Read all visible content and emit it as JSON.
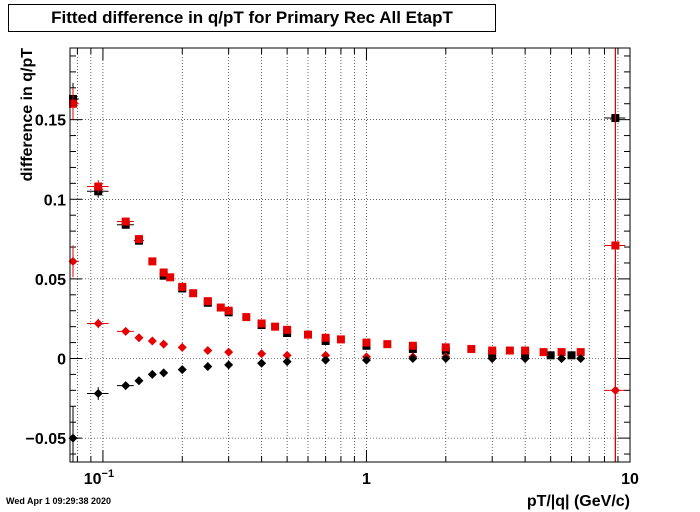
{
  "chart_data": {
    "type": "scatter",
    "title": "Fitted difference in q/pT for Primary Rec All EtapT",
    "xlabel": "pT/|q| (GeV/c)",
    "ylabel": "difference in q/pT",
    "xscale": "log",
    "xlim": [
      0.075,
      10
    ],
    "ylim": [
      -0.065,
      0.195
    ],
    "grid": true,
    "xticks": [
      {
        "v": 0.1,
        "base": "10",
        "exp": "−1"
      },
      {
        "v": 1,
        "text": "1"
      },
      {
        "v": 10,
        "text": "10"
      }
    ],
    "yticks": [
      {
        "v": -0.05,
        "text": "−0.05"
      },
      {
        "v": 0,
        "text": "0"
      },
      {
        "v": 0.05,
        "text": "0.05"
      },
      {
        "v": 0.1,
        "text": "0.1"
      },
      {
        "v": 0.15,
        "text": "0.15"
      }
    ],
    "series": [
      {
        "marker": "square",
        "color": "#000000",
        "points": [
          [
            0.077,
            0.163
          ],
          [
            0.096,
            0.105
          ],
          [
            0.122,
            0.084
          ],
          [
            0.137,
            0.074
          ],
          [
            0.17,
            0.052
          ],
          [
            0.2,
            0.044
          ],
          [
            0.25,
            0.035
          ],
          [
            0.3,
            0.029
          ],
          [
            0.4,
            0.021
          ],
          [
            0.5,
            0.016
          ],
          [
            0.7,
            0.011
          ],
          [
            1.0,
            0.008
          ],
          [
            1.5,
            0.006
          ],
          [
            2.0,
            0.005
          ],
          [
            3.0,
            0.003
          ],
          [
            4.0,
            0.003
          ],
          [
            5.0,
            0.002
          ],
          [
            6.0,
            0.002
          ],
          [
            8.8,
            0.151
          ]
        ],
        "xerr": [
          [
            0.074,
            0.081
          ],
          [
            0.087,
            0.105
          ],
          [
            0.113,
            0.131
          ],
          [
            0.131,
            0.143
          ],
          [],
          [],
          [],
          [],
          [],
          [],
          [],
          [],
          [],
          [],
          [],
          [],
          [],
          [],
          [
            8.0,
            9.6
          ]
        ],
        "yerr": [
          0.01,
          0.004,
          0.002,
          0.002,
          0,
          0,
          0,
          0,
          0,
          0,
          0,
          0,
          0,
          0,
          0,
          0,
          0,
          0,
          0.25
        ]
      },
      {
        "marker": "square",
        "color": "#e60000",
        "points": [
          [
            0.077,
            0.16
          ],
          [
            0.096,
            0.108
          ],
          [
            0.122,
            0.086
          ],
          [
            0.137,
            0.075
          ],
          [
            0.154,
            0.061
          ],
          [
            0.17,
            0.054
          ],
          [
            0.18,
            0.051
          ],
          [
            0.2,
            0.045
          ],
          [
            0.22,
            0.041
          ],
          [
            0.25,
            0.036
          ],
          [
            0.28,
            0.032
          ],
          [
            0.3,
            0.03
          ],
          [
            0.35,
            0.026
          ],
          [
            0.4,
            0.022
          ],
          [
            0.45,
            0.02
          ],
          [
            0.5,
            0.018
          ],
          [
            0.6,
            0.015
          ],
          [
            0.7,
            0.013
          ],
          [
            0.8,
            0.012
          ],
          [
            1.0,
            0.01
          ],
          [
            1.2,
            0.009
          ],
          [
            1.5,
            0.008
          ],
          [
            2.0,
            0.007
          ],
          [
            2.5,
            0.006
          ],
          [
            3.0,
            0.005
          ],
          [
            3.5,
            0.005
          ],
          [
            4.0,
            0.005
          ],
          [
            4.7,
            0.004
          ],
          [
            5.5,
            0.004
          ],
          [
            6.5,
            0.004
          ],
          [
            8.8,
            0.071
          ]
        ],
        "xerr": [
          [
            0.074,
            0.081
          ],
          [
            0.087,
            0.105
          ],
          [
            0.113,
            0.131
          ],
          [],
          [],
          [],
          [],
          [],
          [],
          [],
          [],
          [],
          [],
          [],
          [],
          [],
          [],
          [],
          [],
          [],
          [],
          [],
          [],
          [],
          [],
          [],
          [],
          [],
          [],
          [],
          [
            8.0,
            9.6
          ]
        ],
        "yerr": [
          0.01,
          0.004,
          0.002,
          0.002,
          0,
          0,
          0,
          0,
          0,
          0,
          0,
          0,
          0,
          0,
          0,
          0,
          0,
          0,
          0,
          0,
          0,
          0,
          0,
          0,
          0,
          0,
          0,
          0,
          0,
          0,
          0.2
        ]
      },
      {
        "marker": "diamond",
        "color": "#e60000",
        "points": [
          [
            0.077,
            0.061
          ],
          [
            0.096,
            0.022
          ],
          [
            0.122,
            0.017
          ],
          [
            0.137,
            0.013
          ],
          [
            0.154,
            0.011
          ],
          [
            0.17,
            0.009
          ],
          [
            0.2,
            0.007
          ],
          [
            0.25,
            0.005
          ],
          [
            0.3,
            0.004
          ],
          [
            0.4,
            0.003
          ],
          [
            0.5,
            0.002
          ],
          [
            0.7,
            0.002
          ],
          [
            1.0,
            0.001
          ],
          [
            1.5,
            0.001
          ],
          [
            2.0,
            0.001
          ],
          [
            3.0,
            0.0
          ],
          [
            4.0,
            0.0
          ],
          [
            5.5,
            0.0
          ],
          [
            6.5,
            0.0
          ],
          [
            8.8,
            -0.02
          ]
        ],
        "xerr": [
          [
            0.074,
            0.081
          ],
          [
            0.087,
            0.105
          ],
          [
            0.113,
            0.131
          ],
          [],
          [],
          [],
          [],
          [],
          [],
          [],
          [],
          [],
          [],
          [],
          [],
          [],
          [],
          [],
          [],
          [
            8.0,
            9.6
          ]
        ],
        "yerr": [
          0.01,
          0.003,
          0.002,
          0,
          0,
          0,
          0,
          0,
          0,
          0,
          0,
          0,
          0,
          0,
          0,
          0,
          0,
          0,
          0,
          0.08
        ]
      },
      {
        "marker": "diamond",
        "color": "#000000",
        "points": [
          [
            0.077,
            -0.05
          ],
          [
            0.096,
            -0.022
          ],
          [
            0.122,
            -0.017
          ],
          [
            0.137,
            -0.014
          ],
          [
            0.154,
            -0.01
          ],
          [
            0.17,
            -0.009
          ],
          [
            0.2,
            -0.007
          ],
          [
            0.25,
            -0.005
          ],
          [
            0.3,
            -0.004
          ],
          [
            0.4,
            -0.003
          ],
          [
            0.5,
            -0.002
          ],
          [
            0.7,
            -0.001
          ],
          [
            1.0,
            -0.001
          ],
          [
            1.5,
            0.0
          ],
          [
            2.0,
            0.0
          ],
          [
            3.0,
            0.0
          ],
          [
            4.0,
            0.0
          ],
          [
            5.5,
            0.0
          ],
          [
            6.5,
            0.0
          ]
        ],
        "xerr": [
          [
            0.074,
            0.081
          ],
          [
            0.087,
            0.105
          ],
          [
            0.113,
            0.131
          ],
          [],
          [],
          [],
          [],
          [],
          [],
          [],
          [],
          [],
          [],
          [],
          [],
          [],
          [],
          [],
          []
        ],
        "yerr": [
          0.02,
          0.004,
          0.002,
          0,
          0,
          0,
          0,
          0,
          0,
          0,
          0,
          0,
          0,
          0,
          0,
          0,
          0,
          0,
          0
        ]
      }
    ]
  },
  "footer": {
    "timestamp": "Wed Apr  1 09:29:38 2020"
  }
}
